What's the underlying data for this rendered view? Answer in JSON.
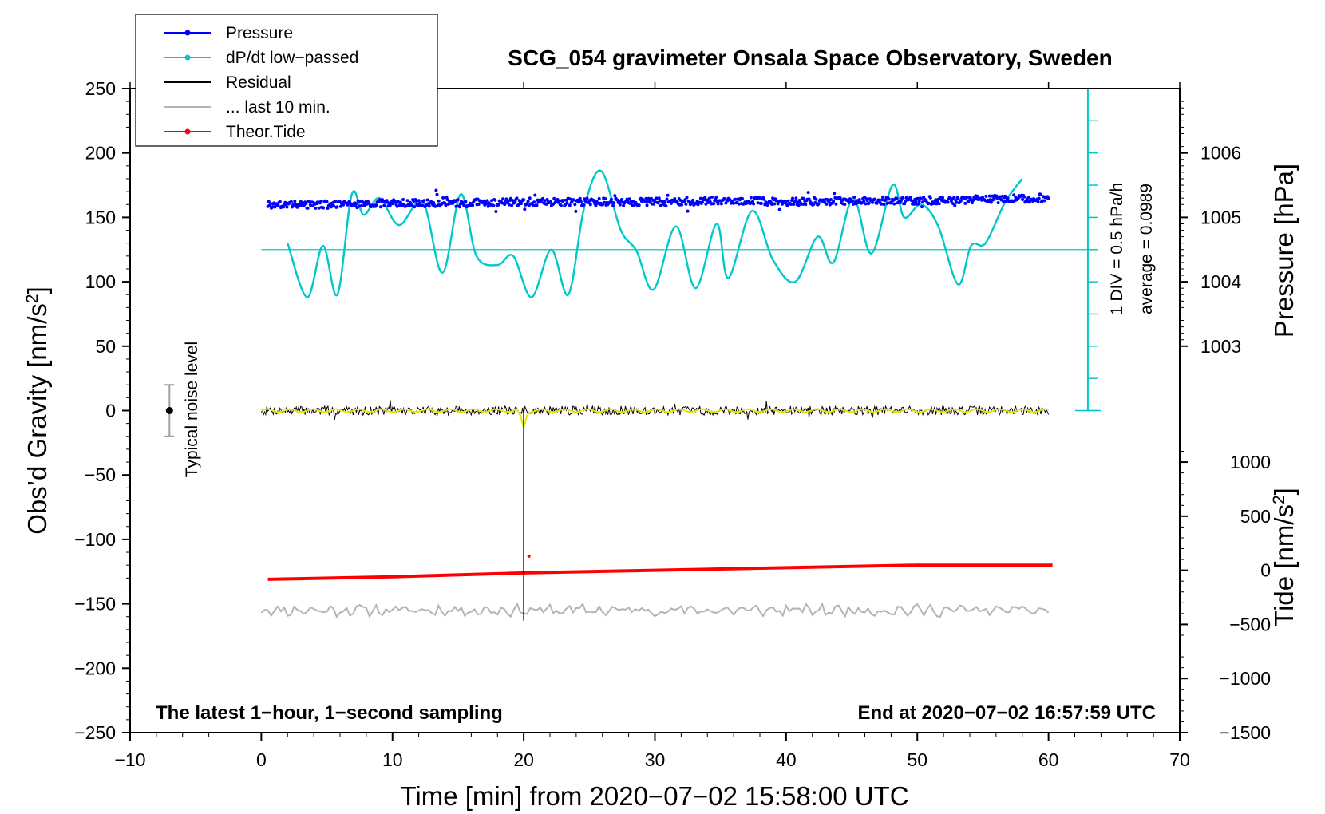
{
  "chart_data": {
    "type": "line",
    "title": "SCG_054 gravimeter Onsala Space Observatory, Sweden",
    "xlabel": "Time [min] from 2020−07−02 15:58:00 UTC",
    "xlim": [
      -10,
      70
    ],
    "x_ticks": [
      -10,
      0,
      10,
      20,
      30,
      40,
      50,
      60,
      70
    ],
    "x_tick_labels": [
      "−10",
      "0",
      "10",
      "20",
      "30",
      "40",
      "50",
      "60",
      "70"
    ],
    "left_axis": {
      "label": "Obs’d Gravity [nm/s",
      "label_sup": "2",
      "label_end": "]",
      "ylim": [
        -250,
        250
      ],
      "ticks": [
        -250,
        -200,
        -150,
        -100,
        -50,
        0,
        50,
        100,
        150,
        200,
        250
      ],
      "tick_labels": [
        "−250",
        "−200",
        "−150",
        "−100",
        "−50",
        "0",
        "50",
        "100",
        "150",
        "200",
        "250"
      ]
    },
    "pressure_axis": {
      "label": "Pressure [hPa]",
      "ticks": [
        1003,
        1004,
        1005,
        1006
      ],
      "tick_labels": [
        "1003",
        "1004",
        "1005",
        "1006"
      ],
      "gravity_at_1003": 50,
      "gravity_per_hPa": 50
    },
    "tide_axis": {
      "label": "Tide [nm/s",
      "label_sup": "2",
      "label_end": "]",
      "ticks": [
        -1500,
        -1000,
        -500,
        0,
        500,
        1000
      ],
      "tick_labels": [
        "−1500",
        "−1000",
        "−500",
        "0",
        "500",
        "1000"
      ],
      "gravity_at_minus1500": -250,
      "gravity_per_1000": 84
    },
    "dpdt_scale": {
      "label": "1 DIV = 0.5 hPa/h",
      "average_label": "average = 0.0989",
      "x": 63,
      "range": [
        0,
        250
      ],
      "divisions": 10,
      "baseline": 125
    },
    "noise_bar": {
      "label": "Typical noise level",
      "x": -7,
      "center": 0,
      "low": -20,
      "high": 20
    },
    "series": [
      {
        "name": "Pressure",
        "color": "#0000ff",
        "marker": "dot",
        "x": [
          0.5,
          5,
          10,
          15,
          20,
          25,
          30,
          35,
          40,
          45,
          50,
          55,
          60
        ],
        "values": [
          160,
          160,
          161,
          161,
          162,
          162,
          162,
          163,
          162,
          163,
          163,
          164,
          165
        ]
      },
      {
        "name": "dP/dt low−passed",
        "color": "#00c8c8",
        "marker": "dot",
        "x": [
          2,
          3.5,
          4.7,
          5.8,
          6.9,
          7.8,
          9.0,
          10.5,
          12.3,
          13.8,
          15.2,
          16.4,
          18.0,
          19.2,
          20.6,
          22.1,
          23.4,
          24.6,
          25.9,
          27.4,
          28.6,
          29.9,
          31.6,
          33.1,
          34.7,
          35.6,
          37.4,
          39.0,
          40.7,
          42.4,
          43.6,
          45.1,
          46.5,
          48.1,
          49.0,
          50.3,
          51.6,
          53.1,
          54.1,
          55.2,
          56.7,
          58.0
        ],
        "values": [
          130,
          88,
          128,
          90,
          168,
          152,
          165,
          144,
          162,
          107,
          168,
          120,
          113,
          120,
          88,
          125,
          90,
          157,
          186,
          140,
          124,
          94,
          143,
          95,
          145,
          103,
          155,
          117,
          100,
          135,
          115,
          165,
          122,
          175,
          150,
          160,
          143,
          98,
          128,
          130,
          162,
          180
        ]
      },
      {
        "name": "Residual",
        "color": "#000000",
        "marker": "none",
        "x": [
          0,
          19.9,
          20.0,
          20.05,
          20.3,
          60
        ],
        "values": [
          0,
          0,
          -160,
          -5,
          0,
          0
        ]
      },
      {
        "name": "... last 10 min.",
        "color": "#b4b4b4",
        "marker": "none",
        "x": [
          0,
          60
        ],
        "values": [
          -155,
          -155
        ]
      },
      {
        "name": "Theor.Tide",
        "color": "#ff0000",
        "marker": "dot",
        "x": [
          0.5,
          10,
          20,
          30,
          40,
          50,
          60.3
        ],
        "values": [
          -131,
          -129,
          -126,
          -124,
          -122,
          -120,
          -120
        ]
      }
    ],
    "legend": {
      "placement": "top-left",
      "entries": [
        "Pressure",
        "dP/dt low−passed",
        "Residual",
        "... last 10 min.",
        "Theor.Tide"
      ]
    },
    "annotations": {
      "bottom_left": "The latest 1−hour, 1−second sampling",
      "bottom_right": "End at 2020−07−02 16:57:59 UTC"
    }
  }
}
